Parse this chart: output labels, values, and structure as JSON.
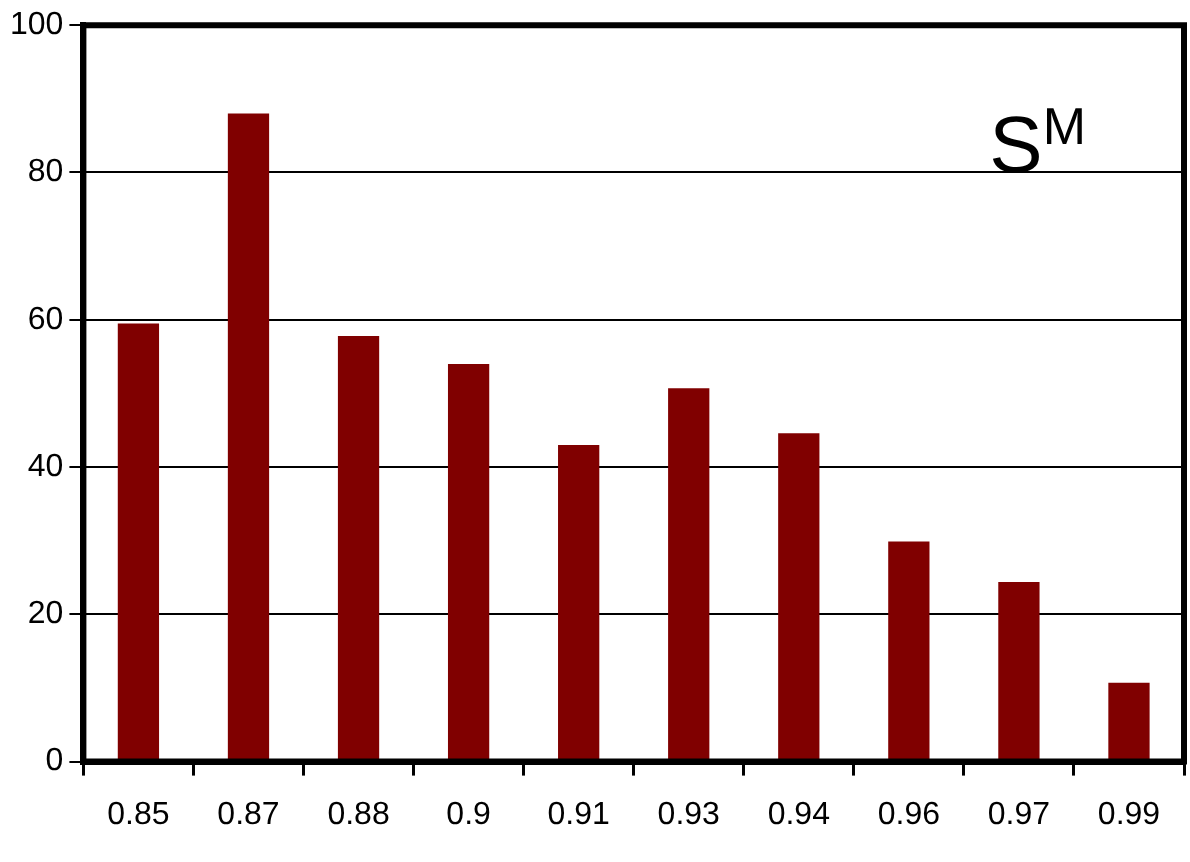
{
  "chart_data": {
    "type": "bar",
    "categories": [
      "0.85",
      "0.87",
      "0.88",
      "0.9",
      "0.91",
      "0.93",
      "0.94",
      "0.96",
      "0.97",
      "0.99"
    ],
    "values": [
      59.5,
      88,
      57.8,
      54,
      43,
      50.7,
      44.6,
      29.9,
      24.4,
      10.7
    ],
    "color": "#800000",
    "ylim": [
      0,
      100
    ],
    "yticks": [
      0,
      20,
      40,
      60,
      80,
      100
    ],
    "grid": "y",
    "annotations": [
      "S$^{M}$"
    ]
  }
}
